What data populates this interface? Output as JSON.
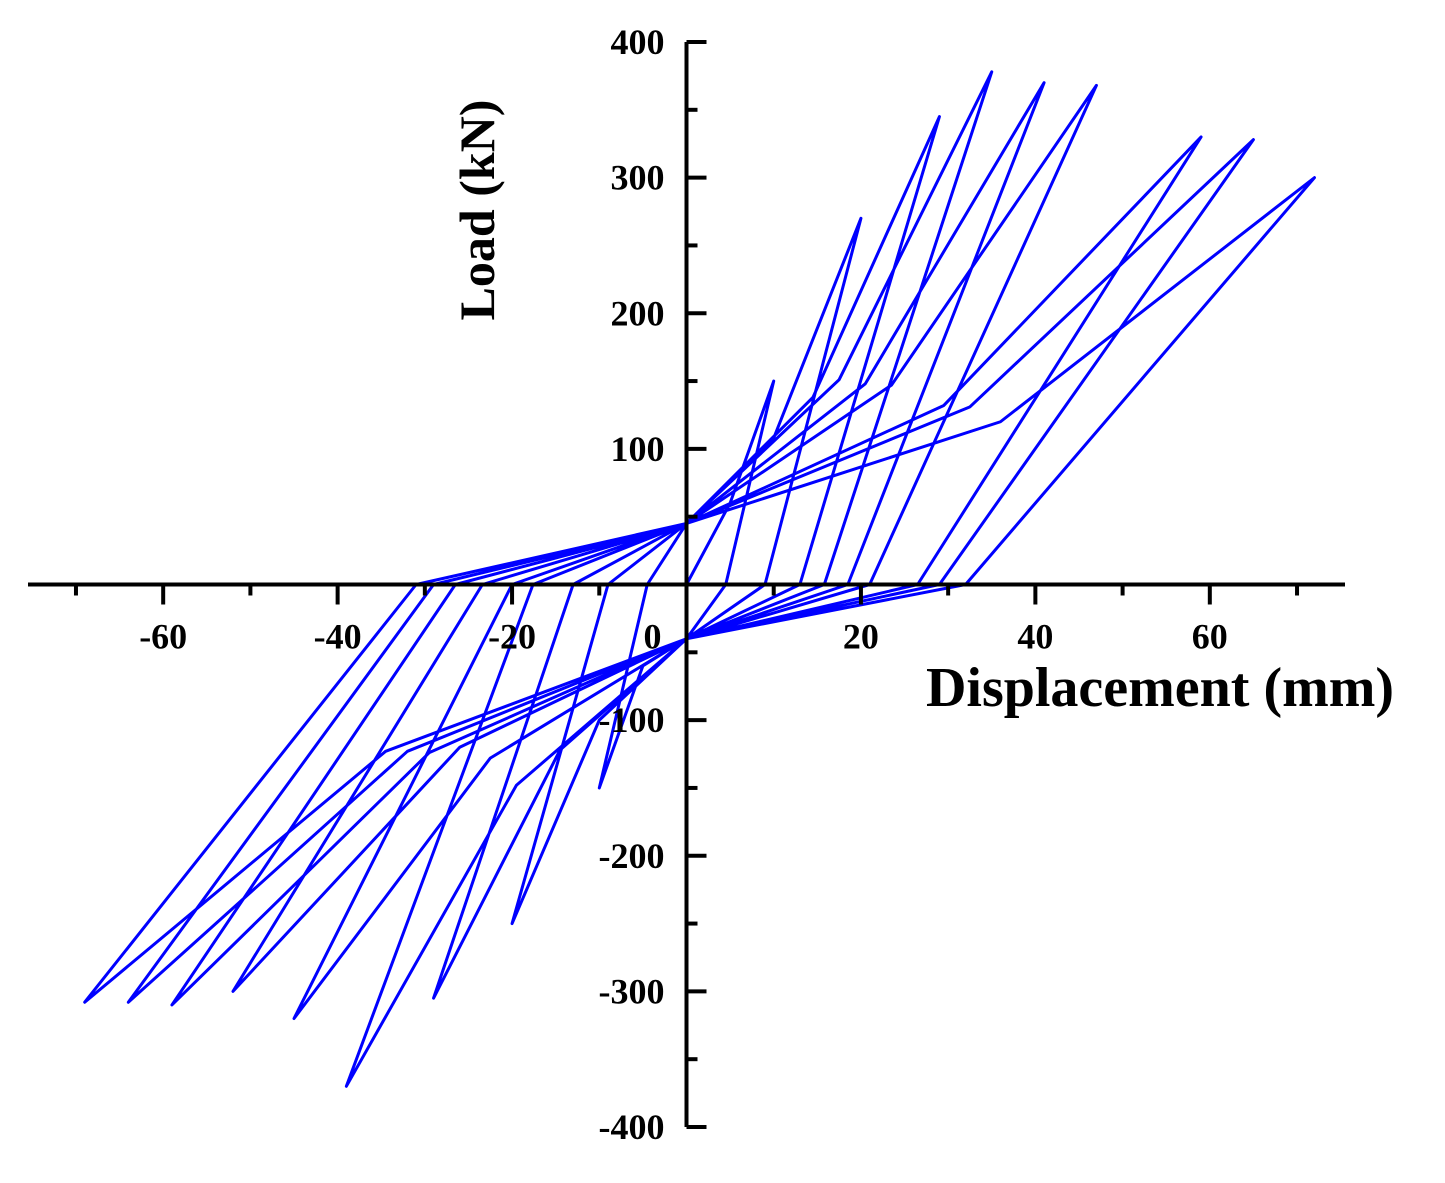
{
  "chart_data": {
    "type": "line",
    "xlabel": "Displacement (mm)",
    "ylabel": "Load (kN)",
    "xlim": [
      -75.5,
      75.5
    ],
    "ylim": [
      -400,
      400
    ],
    "xticks": [
      -60,
      -40,
      -20,
      0,
      20,
      40,
      60
    ],
    "xminor_ticks": [
      -70,
      -50,
      -30,
      -10,
      10,
      30,
      50,
      70
    ],
    "yticks": [
      -400,
      -300,
      -200,
      -100,
      100,
      200,
      300,
      400
    ],
    "yminor_ticks": [
      -350,
      -250,
      -150,
      -50,
      50,
      150,
      250,
      350
    ],
    "series": [
      {
        "color": "#0000ff",
        "x": [
          0,
          5,
          10,
          4.5,
          0,
          -5,
          -10,
          -4.5,
          0,
          10,
          20,
          9,
          0,
          -10,
          -20,
          -9,
          0,
          14.5,
          29,
          13,
          0,
          -14.5,
          -29,
          -13,
          0,
          17.5,
          35,
          15.8,
          0,
          -19.5,
          -39,
          -17.6,
          0,
          20.5,
          41,
          18.5,
          0,
          -22.5,
          -45,
          -20,
          0,
          23.5,
          47,
          21,
          0,
          -26,
          -52,
          -23.4,
          0,
          29.5,
          59,
          26.5,
          0,
          -29.5,
          -59,
          -26.5,
          0,
          32.5,
          65,
          29,
          0,
          -32,
          -64,
          -29,
          0,
          36,
          72,
          32,
          0,
          -34.5,
          -69,
          -31,
          0
        ],
        "values": [
          0,
          60,
          150,
          0,
          -40,
          -60,
          -150,
          0,
          45,
          108,
          270,
          0,
          -40,
          -100,
          -250,
          0,
          45,
          138,
          345,
          0,
          -40,
          -122,
          -305,
          0,
          45,
          151,
          378,
          0,
          -40,
          -148,
          -370,
          0,
          45,
          148,
          370,
          0,
          -40,
          -128,
          -320,
          0,
          45,
          147,
          368,
          0,
          -40,
          -120,
          -300,
          0,
          45,
          132,
          330,
          0,
          -40,
          -124,
          -310,
          0,
          45,
          131,
          328,
          0,
          -40,
          -123,
          -308,
          0,
          45,
          120,
          300,
          0,
          -40,
          -123,
          -308,
          0,
          45
        ]
      }
    ]
  }
}
